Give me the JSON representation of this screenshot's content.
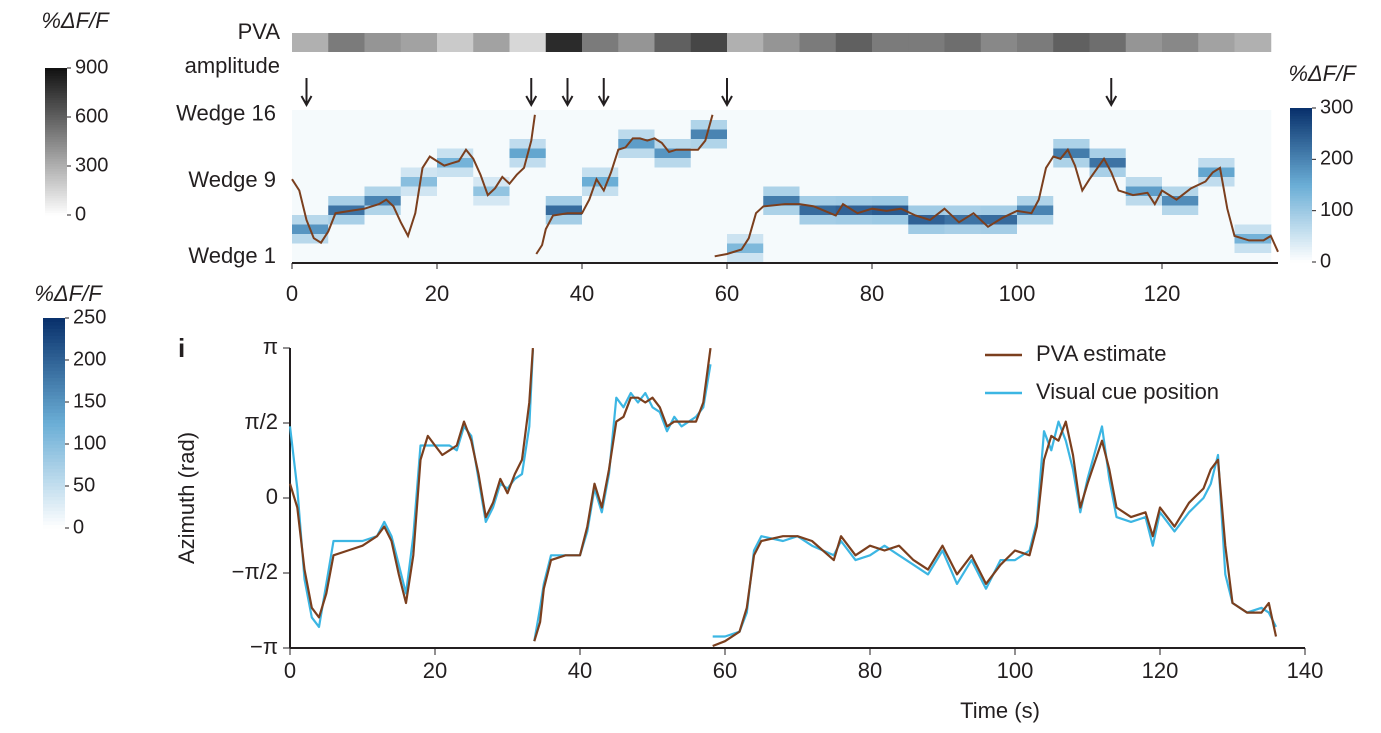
{
  "chart_data": [
    {
      "type": "heatmap",
      "amplitude": {
        "label": [
          "PVA",
          "amplitude"
        ],
        "values": [
          300,
          500,
          400,
          350,
          200,
          350,
          150,
          800,
          500,
          400,
          600,
          700,
          300,
          400,
          500,
          600,
          500,
          500,
          550,
          450,
          500,
          600,
          550,
          400,
          450,
          350,
          300
        ],
        "zlim": [
          0,
          900
        ],
        "colors": [
          "#ffffff",
          "#111111"
        ],
        "colorbar": {
          "title": "%ΔF/F",
          "ticks": [
            0,
            300,
            600,
            900
          ]
        }
      },
      "arrows": [
        2,
        33,
        38,
        43,
        60,
        113
      ],
      "x_bins": [
        0,
        5,
        10,
        15,
        20,
        25,
        30,
        35,
        40,
        45,
        50,
        55,
        60,
        65,
        70,
        75,
        80,
        85,
        90,
        95,
        100,
        105,
        110,
        115,
        120,
        125,
        130,
        135
      ],
      "z": [
        [
          10,
          10,
          10,
          10,
          10,
          10,
          10,
          10,
          10,
          10,
          10,
          10,
          52,
          10,
          10,
          10,
          10,
          10,
          10,
          10,
          10,
          10,
          10,
          10,
          10,
          10,
          10
        ],
        [
          10,
          10,
          10,
          10,
          10,
          10,
          10,
          10,
          10,
          10,
          10,
          10,
          130,
          10,
          10,
          10,
          10,
          10,
          10,
          10,
          10,
          10,
          10,
          10,
          10,
          10,
          56
        ],
        [
          72,
          10,
          10,
          10,
          10,
          10,
          10,
          10,
          10,
          10,
          10,
          10,
          52,
          10,
          10,
          10,
          10,
          10,
          10,
          10,
          10,
          10,
          10,
          10,
          10,
          10,
          140
        ],
        [
          180,
          10,
          10,
          10,
          10,
          10,
          10,
          10,
          10,
          10,
          10,
          10,
          10,
          10,
          10,
          10,
          10,
          96,
          88,
          92,
          10,
          10,
          10,
          10,
          10,
          10,
          56
        ],
        [
          72,
          88,
          10,
          10,
          10,
          10,
          10,
          92,
          10,
          10,
          10,
          10,
          10,
          10,
          92,
          96,
          100,
          240,
          220,
          230,
          80,
          10,
          10,
          10,
          10,
          10,
          10
        ],
        [
          10,
          220,
          80,
          10,
          10,
          10,
          10,
          230,
          10,
          10,
          10,
          10,
          10,
          84,
          230,
          240,
          250,
          96,
          88,
          92,
          200,
          10,
          10,
          10,
          76,
          10,
          10
        ],
        [
          10,
          88,
          200,
          10,
          10,
          44,
          10,
          92,
          10,
          10,
          10,
          10,
          10,
          210,
          92,
          96,
          100,
          10,
          10,
          10,
          80,
          10,
          10,
          68,
          190,
          10,
          10
        ],
        [
          10,
          10,
          80,
          48,
          10,
          110,
          10,
          10,
          60,
          10,
          10,
          10,
          10,
          84,
          10,
          10,
          10,
          10,
          10,
          10,
          10,
          10,
          10,
          170,
          76,
          10,
          10
        ],
        [
          10,
          10,
          10,
          120,
          10,
          44,
          10,
          10,
          150,
          10,
          10,
          10,
          10,
          10,
          10,
          10,
          10,
          10,
          10,
          10,
          10,
          10,
          10,
          68,
          10,
          64,
          10
        ],
        [
          10,
          10,
          10,
          48,
          56,
          10,
          10,
          10,
          60,
          10,
          10,
          10,
          10,
          10,
          10,
          10,
          10,
          10,
          10,
          10,
          10,
          10,
          88,
          10,
          10,
          160,
          10
        ],
        [
          10,
          10,
          10,
          10,
          140,
          10,
          64,
          10,
          10,
          10,
          72,
          10,
          10,
          10,
          10,
          10,
          10,
          10,
          10,
          10,
          10,
          84,
          220,
          10,
          10,
          64,
          10
        ],
        [
          10,
          10,
          10,
          10,
          56,
          10,
          160,
          10,
          10,
          68,
          180,
          10,
          10,
          10,
          10,
          10,
          10,
          10,
          10,
          10,
          10,
          210,
          88,
          10,
          10,
          10,
          10
        ],
        [
          10,
          10,
          10,
          10,
          10,
          10,
          64,
          10,
          10,
          170,
          72,
          80,
          10,
          10,
          10,
          10,
          10,
          10,
          10,
          10,
          10,
          84,
          10,
          10,
          10,
          10,
          10
        ],
        [
          10,
          10,
          10,
          10,
          10,
          10,
          10,
          10,
          10,
          68,
          10,
          200,
          10,
          10,
          10,
          10,
          10,
          10,
          10,
          10,
          10,
          10,
          10,
          10,
          10,
          10,
          10
        ],
        [
          10,
          10,
          10,
          10,
          10,
          10,
          10,
          10,
          10,
          10,
          10,
          80,
          10,
          10,
          10,
          10,
          10,
          10,
          10,
          10,
          10,
          10,
          10,
          10,
          10,
          10,
          10
        ],
        [
          10,
          10,
          10,
          10,
          10,
          10,
          10,
          10,
          10,
          10,
          10,
          10,
          10,
          10,
          10,
          10,
          10,
          10,
          10,
          10,
          10,
          10,
          10,
          10,
          10,
          10,
          10
        ]
      ],
      "zlim": [
        0,
        300
      ],
      "colors": [
        "#ffffff",
        "#6baed6",
        "#08306b"
      ],
      "colorbar": {
        "title": "%ΔF/F",
        "ticks": [
          0,
          100,
          200,
          300
        ]
      },
      "xlim": [
        0,
        136
      ],
      "xticks": [
        0,
        20,
        40,
        60,
        80,
        100,
        120
      ],
      "ylim": [
        0.5,
        16.5
      ],
      "yticks": [
        {
          "value": 16,
          "label": "Wedge 16"
        },
        {
          "value": 9,
          "label": "Wedge 9"
        },
        {
          "value": 1,
          "label": "Wedge 1"
        }
      ]
    },
    {
      "type": "line",
      "panel_label": "i",
      "x_label": "Time (s)",
      "y_label": "Azimuth (rad)",
      "xlim": [
        0,
        140
      ],
      "xticks": [
        0,
        20,
        40,
        60,
        80,
        100,
        120,
        140
      ],
      "ylim": [
        -3.14159,
        3.14159
      ],
      "yticks": [
        {
          "value": -3.14159,
          "label": "−π"
        },
        {
          "value": -1.5708,
          "label": "−π/2"
        },
        0,
        {
          "value": 1.5708,
          "label": "π/2"
        },
        {
          "value": 3.14159,
          "label": "π"
        }
      ],
      "x": [
        0,
        1,
        2,
        3,
        4,
        5,
        6,
        8,
        10,
        12,
        13,
        14,
        15,
        16,
        17,
        18,
        19,
        20,
        21,
        22,
        23,
        24,
        25,
        26,
        27,
        28,
        29,
        30,
        31,
        32,
        33,
        33.5,
        33.6,
        33.7,
        34.5,
        35,
        36,
        38,
        40,
        41,
        42,
        43,
        44,
        45,
        46,
        47,
        48,
        49,
        50,
        51,
        52,
        53,
        54,
        56,
        57,
        58,
        58.2,
        58.3,
        60,
        62,
        63,
        64,
        65,
        68,
        70,
        72,
        75,
        76,
        78,
        80,
        82,
        84,
        86,
        88,
        90,
        92,
        94,
        96,
        98,
        100,
        102,
        103,
        104,
        105,
        106,
        107,
        108,
        109,
        110,
        112,
        113,
        114,
        116,
        118,
        119,
        120,
        122,
        124,
        126,
        127,
        128,
        129,
        130,
        132,
        134,
        135,
        136
      ],
      "series": [
        {
          "name": "Visual cue position",
          "color": "#3cb6e3",
          "values": [
            1.5,
            0.2,
            -1.7,
            -2.5,
            -2.7,
            -1.8,
            -0.9,
            -0.9,
            -0.9,
            -0.8,
            -0.5,
            -0.8,
            -1.4,
            -2.0,
            -0.8,
            1.1,
            1.1,
            1.1,
            1.1,
            1.1,
            1.0,
            1.5,
            1.3,
            0.4,
            -0.5,
            -0.2,
            0.3,
            0.2,
            0.4,
            0.5,
            1.5,
            3.1,
            null,
            -3.0,
            -2.3,
            -1.8,
            -1.2,
            -1.2,
            -1.2,
            -0.7,
            0.2,
            -0.3,
            0.5,
            2.1,
            1.9,
            2.2,
            2.0,
            2.2,
            1.9,
            1.8,
            1.4,
            1.7,
            1.5,
            1.7,
            1.9,
            2.8,
            null,
            -2.9,
            -2.9,
            -2.8,
            -2.4,
            -1.1,
            -0.8,
            -0.9,
            -0.8,
            -1.0,
            -1.2,
            -0.9,
            -1.3,
            -1.2,
            -1.0,
            -1.2,
            -1.4,
            -1.6,
            -1.1,
            -1.8,
            -1.3,
            -1.9,
            -1.3,
            -1.3,
            -1.1,
            -0.5,
            1.4,
            1.0,
            1.6,
            1.2,
            0.6,
            -0.3,
            0.4,
            1.5,
            0.4,
            -0.4,
            -0.5,
            -0.4,
            -1.0,
            -0.3,
            -0.7,
            -0.3,
            0.0,
            0.3,
            0.9,
            -1.6,
            -2.2,
            -2.4,
            -2.3,
            -2.4,
            -2.7
          ]
        },
        {
          "name": "PVA estimate",
          "color": "#7b3f1e",
          "values": [
            0.3,
            -0.2,
            -1.5,
            -2.3,
            -2.5,
            -2.0,
            -1.2,
            -1.1,
            -1.0,
            -0.8,
            -0.6,
            -0.9,
            -1.6,
            -2.2,
            -1.2,
            0.8,
            1.3,
            1.1,
            0.9,
            1.0,
            1.1,
            1.6,
            1.2,
            0.5,
            -0.4,
            -0.1,
            0.4,
            0.1,
            0.5,
            0.8,
            2.0,
            3.14,
            null,
            -3.0,
            -2.6,
            -1.9,
            -1.3,
            -1.2,
            -1.2,
            -0.6,
            0.3,
            -0.2,
            0.6,
            1.6,
            1.7,
            2.1,
            2.1,
            2.0,
            2.1,
            1.9,
            1.5,
            1.6,
            1.6,
            1.6,
            2.0,
            3.14,
            null,
            -3.1,
            -3.0,
            -2.8,
            -2.3,
            -1.2,
            -0.9,
            -0.8,
            -0.8,
            -0.9,
            -1.3,
            -0.8,
            -1.2,
            -1.0,
            -1.1,
            -1.0,
            -1.3,
            -1.5,
            -1.0,
            -1.6,
            -1.2,
            -1.8,
            -1.4,
            -1.1,
            -1.2,
            -0.6,
            0.8,
            1.3,
            1.2,
            1.6,
            0.9,
            -0.2,
            0.3,
            1.2,
            0.6,
            -0.2,
            -0.4,
            -0.3,
            -0.8,
            -0.2,
            -0.6,
            -0.1,
            0.2,
            0.6,
            0.8,
            -1.0,
            -2.2,
            -2.4,
            -2.4,
            -2.2,
            -2.9
          ]
        }
      ],
      "colorbar": {
        "title": "%ΔF/F",
        "ticks": [
          0,
          50,
          100,
          150,
          200,
          250
        ],
        "zlim": [
          0,
          250
        ],
        "colors": [
          "#ffffff",
          "#6baed6",
          "#08306b"
        ]
      }
    }
  ]
}
